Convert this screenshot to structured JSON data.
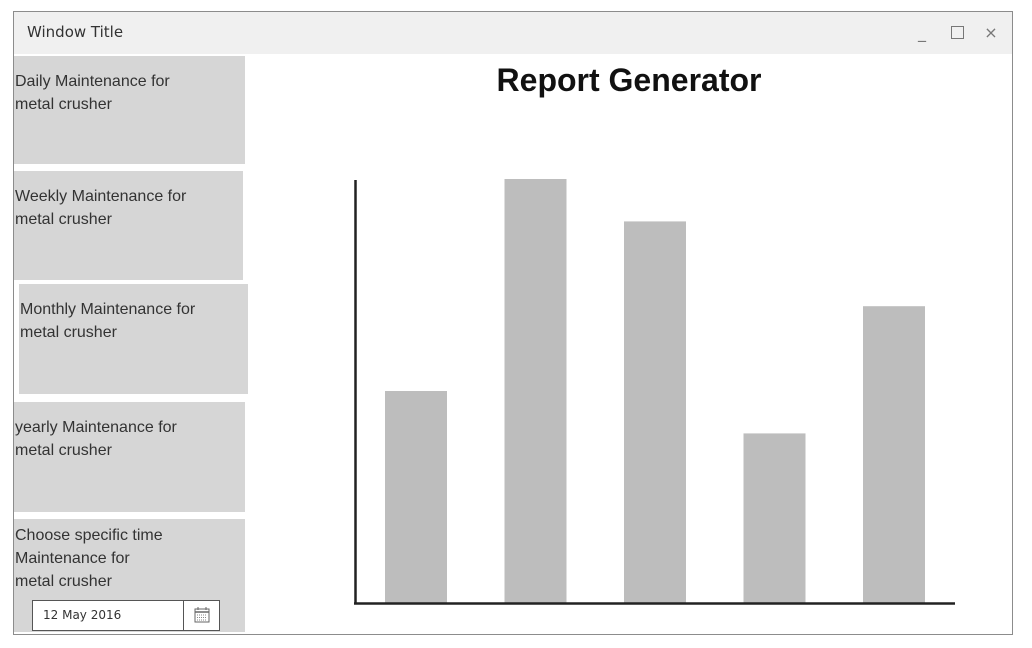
{
  "window": {
    "title": "Window Title",
    "minimize_glyph": "_",
    "close_glyph": "×"
  },
  "sidebar": {
    "items": [
      {
        "label": "Daily Maintenance for\nmetal crusher"
      },
      {
        "label": "Weekly Maintenance for\nmetal crusher"
      },
      {
        "label": "Monthly Maintenance for\nmetal crusher"
      },
      {
        "label": "yearly Maintenance for\nmetal crusher"
      },
      {
        "label": "Choose specific time\nMaintenance for\nmetal crusher"
      }
    ],
    "date_picker": {
      "value": "12 May 2016",
      "icon": "calendar-icon"
    }
  },
  "main": {
    "title": "Report Generator"
  },
  "colors": {
    "sidebar_item_bg": "#d6d6d6",
    "bar_fill": "#bdbdbd",
    "axis": "#222222",
    "titlebar_bg": "#f0f0f0"
  },
  "chart_data": {
    "type": "bar",
    "categories": [
      "",
      "",
      "",
      "",
      ""
    ],
    "values": [
      50,
      100,
      90,
      40,
      70
    ],
    "title": "",
    "xlabel": "",
    "ylabel": "",
    "ylim": [
      0,
      100
    ],
    "grid": false,
    "legend": "none"
  }
}
